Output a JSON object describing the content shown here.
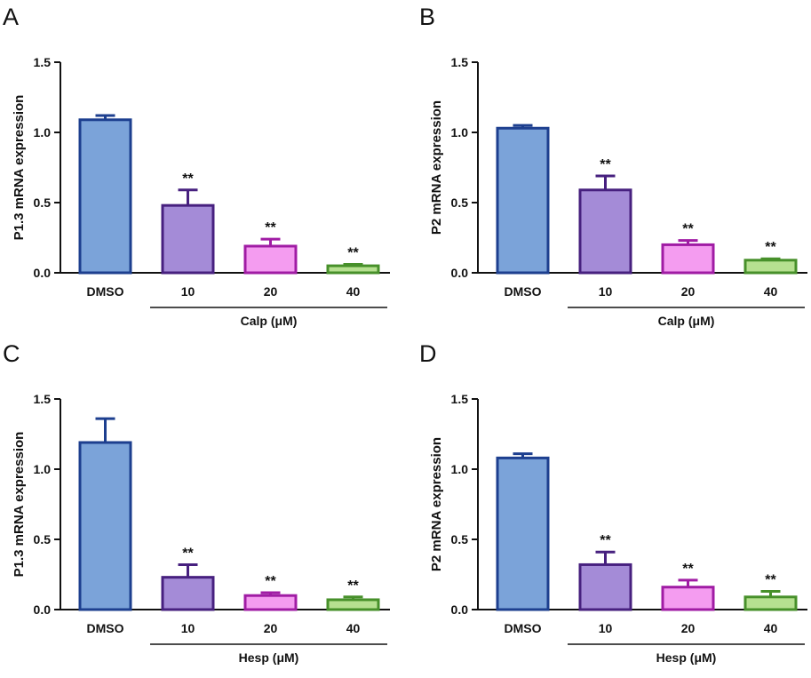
{
  "chart_data": [
    {
      "panel": "A",
      "type": "bar",
      "ylabel": "P1.3 mRNA expression",
      "ylim": [
        0,
        1.5
      ],
      "yticks": [
        "0.0",
        "0.5",
        "1.0",
        "1.5"
      ],
      "categories": [
        "DMSO",
        "10",
        "20",
        "40"
      ],
      "values": [
        1.09,
        0.48,
        0.19,
        0.05
      ],
      "errors": [
        0.03,
        0.11,
        0.05,
        0.01
      ],
      "significance": [
        "",
        "**",
        "**",
        "**"
      ],
      "group_label": "Calp (μM)"
    },
    {
      "panel": "B",
      "type": "bar",
      "ylabel": "P2 mRNA expression",
      "ylim": [
        0,
        1.5
      ],
      "yticks": [
        "0.0",
        "0.5",
        "1.0",
        "1.5"
      ],
      "categories": [
        "DMSO",
        "10",
        "20",
        "40"
      ],
      "values": [
        1.03,
        0.59,
        0.2,
        0.09
      ],
      "errors": [
        0.02,
        0.1,
        0.03,
        0.01
      ],
      "significance": [
        "",
        "**",
        "**",
        "**"
      ],
      "group_label": "Calp (μM)"
    },
    {
      "panel": "C",
      "type": "bar",
      "ylabel": "P1.3 mRNA expression",
      "ylim": [
        0,
        1.5
      ],
      "yticks": [
        "0.0",
        "0.5",
        "1.0",
        "1.5"
      ],
      "categories": [
        "DMSO",
        "10",
        "20",
        "40"
      ],
      "values": [
        1.19,
        0.23,
        0.1,
        0.07
      ],
      "errors": [
        0.17,
        0.09,
        0.02,
        0.02
      ],
      "significance": [
        "",
        "**",
        "**",
        "**"
      ],
      "group_label": "Hesp (μM)"
    },
    {
      "panel": "D",
      "type": "bar",
      "ylabel": "P2 mRNA expression",
      "ylim": [
        0,
        1.5
      ],
      "yticks": [
        "0.0",
        "0.5",
        "1.0",
        "1.5"
      ],
      "categories": [
        "DMSO",
        "10",
        "20",
        "40"
      ],
      "values": [
        1.08,
        0.32,
        0.16,
        0.09
      ],
      "errors": [
        0.03,
        0.09,
        0.05,
        0.04
      ],
      "significance": [
        "",
        "**",
        "**",
        "**"
      ],
      "group_label": "Hesp (μM)"
    }
  ],
  "style": {
    "fills": [
      "#7ba3d9",
      "#a48bd7",
      "#f49cf0",
      "#b6e090"
    ],
    "strokes": [
      "#1d3f8f",
      "#47207f",
      "#a01ca4",
      "#47902a"
    ],
    "axis_color": "#111111"
  }
}
